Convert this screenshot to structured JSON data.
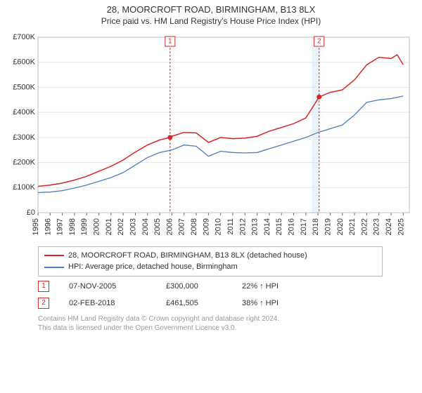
{
  "header": {
    "title": "28, MOORCROFT ROAD, BIRMINGHAM, B13 8LX",
    "subtitle": "Price paid vs. HM Land Registry's House Price Index (HPI)"
  },
  "chart": {
    "type": "line",
    "background_color": "#ffffff",
    "plot_border_color": "#bbbbbb",
    "grid_color": "#e5e5e5",
    "x": {
      "min": 1995,
      "max": 2025.5,
      "ticks": [
        1995,
        1996,
        1997,
        1998,
        1999,
        2000,
        2001,
        2002,
        2003,
        2004,
        2005,
        2006,
        2007,
        2008,
        2009,
        2010,
        2011,
        2012,
        2013,
        2014,
        2015,
        2016,
        2017,
        2018,
        2019,
        2020,
        2021,
        2022,
        2023,
        2024,
        2025
      ],
      "tick_labels": [
        "1995",
        "1996",
        "1997",
        "1998",
        "1999",
        "2000",
        "2001",
        "2002",
        "2003",
        "2004",
        "2005",
        "2006",
        "2007",
        "2008",
        "2009",
        "2010",
        "2011",
        "2012",
        "2013",
        "2014",
        "2015",
        "2016",
        "2017",
        "2018",
        "2019",
        "2020",
        "2021",
        "2022",
        "2023",
        "2024",
        "2025"
      ],
      "label_fontsize": 11,
      "rotation": -90
    },
    "y": {
      "min": 0,
      "max": 700000,
      "ticks": [
        0,
        100000,
        200000,
        300000,
        400000,
        500000,
        600000,
        700000
      ],
      "tick_labels": [
        "£0",
        "£100K",
        "£200K",
        "£300K",
        "£400K",
        "£500K",
        "£600K",
        "£700K"
      ],
      "label_fontsize": 11
    },
    "highlight_band": {
      "x_start": 2017.5,
      "x_end": 2018.09,
      "color": "#eaf2fb"
    },
    "series": [
      {
        "name": "property",
        "label": "28, MOORCROFT ROAD, BIRMINGHAM, B13 8LX (detached house)",
        "color": "#d62728",
        "line_width": 1.5,
        "x": [
          1995,
          1996,
          1997,
          1998,
          1999,
          2000,
          2001,
          2002,
          2003,
          2004,
          2005,
          2005.85,
          2006,
          2007,
          2008,
          2009,
          2010,
          2011,
          2012,
          2013,
          2014,
          2015,
          2016,
          2017,
          2018.09,
          2019,
          2020,
          2021,
          2022,
          2023,
          2024,
          2024.5,
          2025
        ],
        "y": [
          105000,
          110000,
          118000,
          130000,
          145000,
          165000,
          185000,
          210000,
          242000,
          270000,
          290000,
          300000,
          305000,
          320000,
          318000,
          280000,
          300000,
          295000,
          297000,
          305000,
          325000,
          340000,
          355000,
          378000,
          461505,
          480000,
          490000,
          530000,
          590000,
          620000,
          615000,
          630000,
          590000
        ]
      },
      {
        "name": "hpi",
        "label": "HPI: Average price, detached house, Birmingham",
        "color": "#4a7ebb",
        "line_width": 1.3,
        "x": [
          1995,
          1996,
          1997,
          1998,
          1999,
          2000,
          2001,
          2002,
          2003,
          2004,
          2005,
          2006,
          2007,
          2008,
          2009,
          2010,
          2011,
          2012,
          2013,
          2014,
          2015,
          2016,
          2017,
          2018,
          2019,
          2020,
          2021,
          2022,
          2023,
          2024,
          2025
        ],
        "y": [
          80000,
          82000,
          88000,
          98000,
          110000,
          125000,
          140000,
          160000,
          190000,
          220000,
          240000,
          250000,
          270000,
          265000,
          225000,
          245000,
          240000,
          238000,
          240000,
          255000,
          270000,
          285000,
          300000,
          320000,
          335000,
          350000,
          390000,
          440000,
          450000,
          455000,
          465000
        ]
      }
    ],
    "event_markers": [
      {
        "id": "1",
        "x": 2005.85,
        "y": 300000,
        "color": "#d62728",
        "line_dash": "3,2"
      },
      {
        "id": "2",
        "x": 2018.09,
        "y": 461505,
        "color": "#d62728",
        "line_dash": "3,2"
      }
    ]
  },
  "legend": {
    "border_color": "#bbbbbb",
    "items": [
      {
        "color": "#d62728",
        "label": "28, MOORCROFT ROAD, BIRMINGHAM, B13 8LX (detached house)"
      },
      {
        "color": "#4a7ebb",
        "label": "HPI: Average price, detached house, Birmingham"
      }
    ]
  },
  "events_table": {
    "rows": [
      {
        "id": "1",
        "color": "#d62728",
        "date": "07-NOV-2005",
        "price": "£300,000",
        "pct": "22% ↑ HPI"
      },
      {
        "id": "2",
        "color": "#d62728",
        "date": "02-FEB-2018",
        "price": "£461,505",
        "pct": "38% ↑ HPI"
      }
    ]
  },
  "footer": {
    "line1": "Contains HM Land Registry data © Crown copyright and database right 2024.",
    "line2": "This data is licensed under the Open Government Licence v3.0."
  }
}
